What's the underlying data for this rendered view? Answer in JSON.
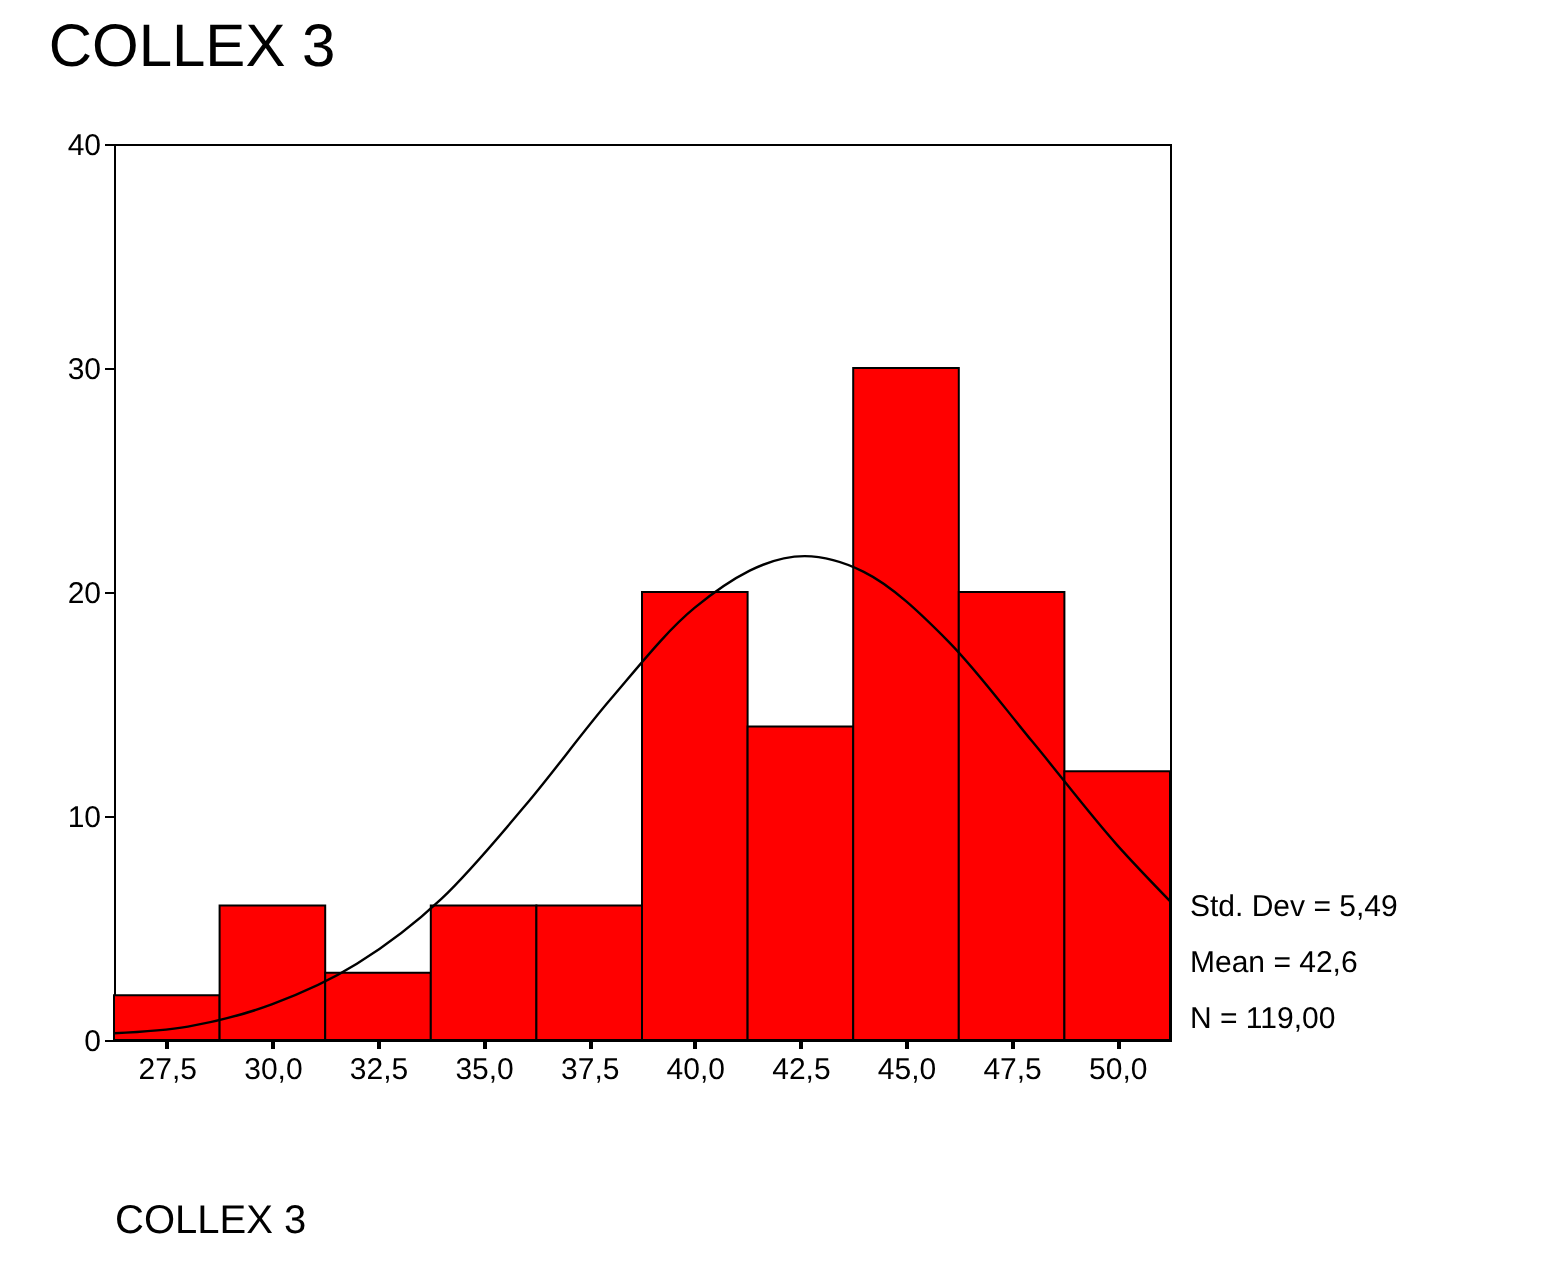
{
  "chart_data": {
    "type": "histogram",
    "title": "COLLEX 3",
    "xlabel": "COLLEX 3",
    "bins": [
      26.25,
      28.75,
      31.25,
      33.75,
      36.25,
      38.75,
      41.25,
      43.75,
      46.25,
      48.75,
      51.25
    ],
    "values": [
      2,
      6,
      3,
      6,
      6,
      20,
      14,
      30,
      20,
      12
    ],
    "color": "#ff0000",
    "series": [
      {
        "type": "line",
        "color": "#000000",
        "x": [
          26.25,
          28,
          30,
          32,
          34,
          36,
          38,
          40,
          42.6,
          44,
          46,
          48,
          50,
          51.25
        ],
        "values": [
          0.3,
          0.6,
          1.6,
          3.4,
          6.3,
          10.5,
          15.2,
          19.3,
          21.6,
          20.9,
          17.8,
          13.3,
          8.7,
          6.2
        ]
      }
    ],
    "xlim": [
      26.25,
      51.25
    ],
    "xticks": [
      {
        "value": 27.5,
        "label": "27,5"
      },
      {
        "value": 30,
        "label": "30,0"
      },
      {
        "value": 32.5,
        "label": "32,5"
      },
      {
        "value": 35,
        "label": "35,0"
      },
      {
        "value": 37.5,
        "label": "37,5"
      },
      {
        "value": 40,
        "label": "40,0"
      },
      {
        "value": 42.5,
        "label": "42,5"
      },
      {
        "value": 45,
        "label": "45,0"
      },
      {
        "value": 47.5,
        "label": "47,5"
      },
      {
        "value": 50,
        "label": "50,0"
      }
    ],
    "ylim": [
      0,
      40
    ],
    "yticks": [
      0,
      10,
      20,
      30,
      40
    ],
    "annotations": [
      "Std. Dev = 5,49",
      "Mean = 42,6",
      "N = 119,00"
    ],
    "grid": false
  }
}
